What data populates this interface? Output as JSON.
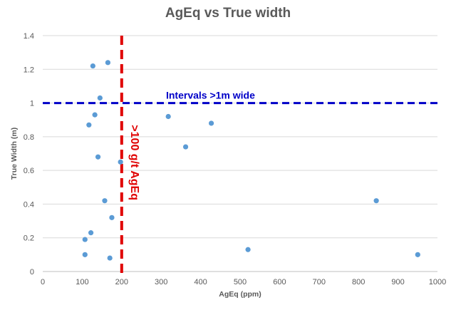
{
  "chart_data": {
    "type": "scatter",
    "title": "AgEq vs True width",
    "xlabel": "AgEq (ppm)",
    "ylabel": "True Width (m)",
    "xlim": [
      0,
      1000
    ],
    "ylim": [
      0,
      1.4
    ],
    "x_ticks": [
      0,
      100,
      200,
      300,
      400,
      500,
      600,
      700,
      800,
      900,
      1000
    ],
    "y_ticks": [
      0,
      0.2,
      0.4,
      0.6,
      0.8,
      1,
      1.2,
      1.4
    ],
    "grid": "horizontal",
    "series": [
      {
        "color": "#5b9bd5",
        "points": [
          {
            "x": 107,
            "y": 0.1
          },
          {
            "x": 107,
            "y": 0.19
          },
          {
            "x": 117,
            "y": 0.87
          },
          {
            "x": 122,
            "y": 0.23
          },
          {
            "x": 127,
            "y": 1.22
          },
          {
            "x": 132,
            "y": 0.93
          },
          {
            "x": 140,
            "y": 0.68
          },
          {
            "x": 145,
            "y": 1.03
          },
          {
            "x": 157,
            "y": 0.42
          },
          {
            "x": 165,
            "y": 1.24
          },
          {
            "x": 170,
            "y": 0.08
          },
          {
            "x": 175,
            "y": 0.32
          },
          {
            "x": 197,
            "y": 0.65
          },
          {
            "x": 318,
            "y": 0.92
          },
          {
            "x": 362,
            "y": 0.74
          },
          {
            "x": 427,
            "y": 0.88
          },
          {
            "x": 520,
            "y": 0.13
          },
          {
            "x": 845,
            "y": 0.42
          },
          {
            "x": 950,
            "y": 0.1
          }
        ]
      }
    ],
    "reference_lines": [
      {
        "axis": "y",
        "value": 1,
        "label": "Intervals >1m wide",
        "color": "#0000c8",
        "style": "dashed"
      },
      {
        "axis": "x",
        "value": 200,
        "label": ">100 g/t AgEq",
        "color": "#e00000",
        "style": "dashed"
      }
    ]
  }
}
